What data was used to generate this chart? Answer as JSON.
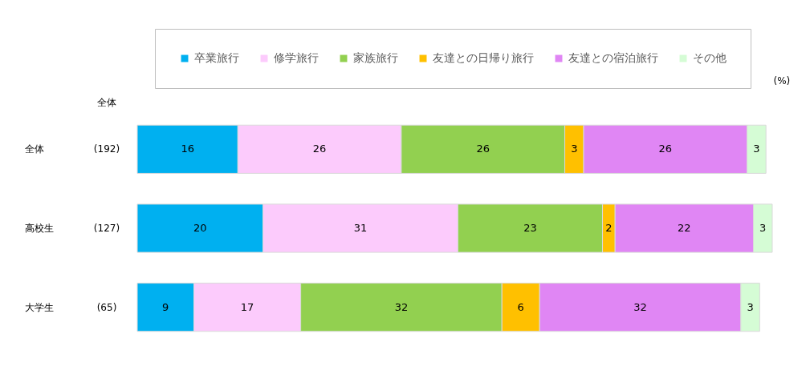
{
  "chart_data": {
    "type": "bar",
    "orientation": "horizontal",
    "stacked": true,
    "categories": [
      "全体",
      "高校生",
      "大学生"
    ],
    "series": [
      {
        "name": "卒業旅行",
        "color": "#00b0f0",
        "values": [
          16,
          20,
          9
        ]
      },
      {
        "name": "修学旅行",
        "color": "#fccbfc",
        "values": [
          26,
          31,
          17
        ]
      },
      {
        "name": "家族旅行",
        "color": "#92d050",
        "values": [
          26,
          23,
          32
        ]
      },
      {
        "name": "友達との日帰り旅行",
        "color": "#ffc000",
        "values": [
          3,
          2,
          6
        ]
      },
      {
        "name": "友達との宿泊旅行",
        "color": "#e086f4",
        "values": [
          26,
          22,
          32
        ]
      },
      {
        "name": "その他",
        "color": "#d5fcd5",
        "values": [
          3,
          3,
          3
        ]
      }
    ],
    "xlabel": "(%)",
    "data_labels": true,
    "legend": "top",
    "tick_labels": "y",
    "annotations": [
      "全体",
      "(192)",
      "(127)",
      "(65)"
    ]
  }
}
